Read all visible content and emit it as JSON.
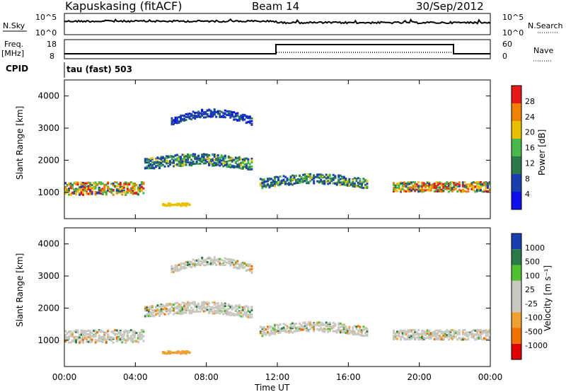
{
  "header": {
    "station": "Kapuskasing (fitACF)",
    "beam": "Beam 14",
    "date": "30/Sep/2012"
  },
  "side_labels": {
    "nsky": "N.Sky",
    "nsearch": "N.Search",
    "freq": "Freq.",
    "freq_unit": "[MHz]",
    "nave": "Nave",
    "cpid": "CPID",
    "cpid_value": "tau (fast) 503",
    "pow_exp_top": "10^5",
    "pow_exp_bottom": "10^0",
    "freq_ticks": [
      "18",
      "8"
    ],
    "nave_ticks": [
      "60",
      "0"
    ]
  },
  "chart_data": [
    {
      "type": "heatmap",
      "panel": "power",
      "title": "",
      "xlabel": "Time UT",
      "ylabel": "Slant Range [km]",
      "colorbar_label": "Power [dB]",
      "colorbar_ticks": [
        "4",
        "8",
        "12",
        "16",
        "20",
        "24",
        "28"
      ],
      "colorbar_colors": [
        "#1010ee",
        "#1a3fb0",
        "#2c7a4a",
        "#48b84a",
        "#e8c000",
        "#f08000",
        "#e81818"
      ],
      "yticks": [
        1000,
        2000,
        3000,
        4000
      ],
      "ylim": [
        180,
        4500
      ],
      "xlim": [
        0,
        24
      ],
      "xticks": [
        "00:00",
        "04:00",
        "08:00",
        "12:00",
        "16:00",
        "20:00",
        "00:00"
      ],
      "echo_bands": [
        {
          "t0": 0.0,
          "t1": 4.5,
          "r_center": 1150,
          "r_width": 400,
          "level": "mixed-high"
        },
        {
          "t0": 4.5,
          "t1": 10.5,
          "r_center": 1900,
          "r_width": 350,
          "level": "mid"
        },
        {
          "t0": 6.0,
          "t1": 10.5,
          "r_center": 3400,
          "r_width": 250,
          "level": "low"
        },
        {
          "t0": 11.0,
          "t1": 17.0,
          "r_center": 1300,
          "r_width": 300,
          "level": "mid"
        },
        {
          "t0": 18.5,
          "t1": 24.0,
          "r_center": 1200,
          "r_width": 300,
          "level": "mixed-high"
        }
      ]
    },
    {
      "type": "heatmap",
      "panel": "velocity",
      "title": "",
      "xlabel": "Time UT",
      "ylabel": "Slant Range [km]",
      "colorbar_label": "Velocity [m s⁻¹]",
      "colorbar_ticks": [
        "-1000",
        "-500",
        "-100",
        "-25",
        "25",
        "100",
        "500",
        "1000"
      ],
      "colorbar_colors": [
        "#e00000",
        "#f07000",
        "#f0a030",
        "#c8c8c0",
        "#c8c8c0",
        "#50c030",
        "#2a7a4a",
        "#1a3fb0"
      ],
      "yticks": [
        1000,
        2000,
        3000,
        4000
      ],
      "ylim": [
        180,
        4500
      ],
      "xlim": [
        0,
        24
      ],
      "xticks": [
        "00:00",
        "04:00",
        "08:00",
        "12:00",
        "16:00",
        "20:00",
        "00:00"
      ]
    }
  ]
}
